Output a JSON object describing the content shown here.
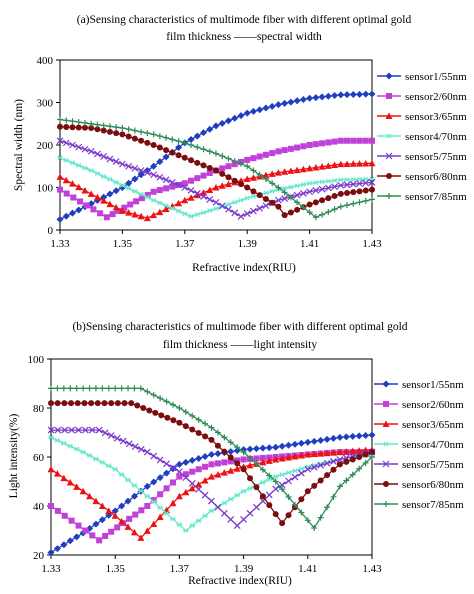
{
  "chart_data": [
    {
      "type": "line",
      "title_lines": [
        "(a)Sensing characteristics of multimode fiber with different optimal gold",
        "film thickness ——spectral width"
      ],
      "xlabel": "Refractive index(RIU)",
      "ylabel": "Spectral width (nm)",
      "xlim": [
        1.33,
        1.43
      ],
      "ylim": [
        0,
        400
      ],
      "xticks": [
        "1.33",
        "1.35",
        "1.37",
        "1.39",
        "1.41",
        "1.43"
      ],
      "yticks": [
        "0",
        "100",
        "200",
        "300",
        "400"
      ],
      "grid": false,
      "legend_position": "right",
      "series": [
        {
          "name": "sensor1/55nm",
          "color": "#1f3fbf",
          "marker": "diamond",
          "points": [
            [
              1.33,
              25
            ],
            [
              1.34,
              62
            ],
            [
              1.35,
              100
            ],
            [
              1.36,
              150
            ],
            [
              1.37,
              205
            ],
            [
              1.38,
              245
            ],
            [
              1.39,
              275
            ],
            [
              1.4,
              295
            ],
            [
              1.41,
              310
            ],
            [
              1.42,
              318
            ],
            [
              1.43,
              320
            ]
          ]
        },
        {
          "name": "sensor2/60nm",
          "color": "#c040d8",
          "marker": "square",
          "points": [
            [
              1.33,
              95
            ],
            [
              1.345,
              30
            ],
            [
              1.36,
              90
            ],
            [
              1.37,
              110
            ],
            [
              1.38,
              140
            ],
            [
              1.39,
              165
            ],
            [
              1.4,
              185
            ],
            [
              1.41,
              200
            ],
            [
              1.42,
              210
            ],
            [
              1.43,
              210
            ]
          ]
        },
        {
          "name": "sensor3/65nm",
          "color": "#ee1111",
          "marker": "triangle",
          "points": [
            [
              1.33,
              125
            ],
            [
              1.34,
              85
            ],
            [
              1.35,
              45
            ],
            [
              1.358,
              28
            ],
            [
              1.37,
              70
            ],
            [
              1.38,
              100
            ],
            [
              1.39,
              120
            ],
            [
              1.4,
              135
            ],
            [
              1.41,
              145
            ],
            [
              1.42,
              155
            ],
            [
              1.43,
              157
            ]
          ]
        },
        {
          "name": "sensor4/70nm",
          "color": "#66e8cc",
          "marker": "asterisk",
          "points": [
            [
              1.33,
              170
            ],
            [
              1.34,
              140
            ],
            [
              1.35,
              105
            ],
            [
              1.36,
              70
            ],
            [
              1.372,
              32
            ],
            [
              1.38,
              50
            ],
            [
              1.39,
              75
            ],
            [
              1.4,
              95
            ],
            [
              1.41,
              110
            ],
            [
              1.42,
              118
            ],
            [
              1.43,
              120
            ]
          ]
        },
        {
          "name": "sensor5/75nm",
          "color": "#7a3acc",
          "marker": "x",
          "points": [
            [
              1.33,
              210
            ],
            [
              1.34,
              185
            ],
            [
              1.35,
              155
            ],
            [
              1.36,
              130
            ],
            [
              1.37,
              100
            ],
            [
              1.38,
              65
            ],
            [
              1.388,
              32
            ],
            [
              1.4,
              70
            ],
            [
              1.41,
              90
            ],
            [
              1.42,
              105
            ],
            [
              1.43,
              112
            ]
          ]
        },
        {
          "name": "sensor6/80nm",
          "color": "#7a0e0e",
          "marker": "circle",
          "points": [
            [
              1.33,
              243
            ],
            [
              1.34,
              240
            ],
            [
              1.35,
              225
            ],
            [
              1.36,
              200
            ],
            [
              1.37,
              170
            ],
            [
              1.38,
              140
            ],
            [
              1.39,
              100
            ],
            [
              1.4,
              55
            ],
            [
              1.402,
              35
            ],
            [
              1.41,
              60
            ],
            [
              1.42,
              85
            ],
            [
              1.43,
              95
            ]
          ]
        },
        {
          "name": "sensor7/85nm",
          "color": "#2e8b57",
          "marker": "plus",
          "points": [
            [
              1.33,
              260
            ],
            [
              1.34,
              250
            ],
            [
              1.35,
              240
            ],
            [
              1.36,
              225
            ],
            [
              1.37,
              205
            ],
            [
              1.38,
              180
            ],
            [
              1.39,
              150
            ],
            [
              1.4,
              100
            ],
            [
              1.412,
              30
            ],
            [
              1.42,
              55
            ],
            [
              1.43,
              72
            ]
          ]
        }
      ]
    },
    {
      "type": "line",
      "title_lines": [
        "(b)Sensing characteristics of multimode fiber with different optimal gold",
        "film thickness ——light intensity"
      ],
      "xlabel": "Refractive index(RIU)",
      "ylabel": "Light intensity(%)",
      "xlim": [
        1.33,
        1.43
      ],
      "ylim": [
        20,
        100
      ],
      "xticks": [
        "1.33",
        "1.35",
        "1.37",
        "1.39",
        "1.41",
        "1.43"
      ],
      "yticks": [
        "20",
        "40",
        "60",
        "80",
        "100"
      ],
      "grid": false,
      "legend_position": "right",
      "series": [
        {
          "name": "sensor1/55nm",
          "color": "#1f3fbf",
          "marker": "diamond",
          "points": [
            [
              1.33,
              21
            ],
            [
              1.34,
              29
            ],
            [
              1.35,
              38
            ],
            [
              1.36,
              48
            ],
            [
              1.37,
              57
            ],
            [
              1.38,
              61
            ],
            [
              1.39,
              63
            ],
            [
              1.4,
              64
            ],
            [
              1.41,
              66
            ],
            [
              1.42,
              68
            ],
            [
              1.43,
              69
            ]
          ]
        },
        {
          "name": "sensor2/60nm",
          "color": "#c040d8",
          "marker": "square",
          "points": [
            [
              1.33,
              40
            ],
            [
              1.345,
              26
            ],
            [
              1.36,
              40
            ],
            [
              1.37,
              52
            ],
            [
              1.38,
              57
            ],
            [
              1.39,
              59
            ],
            [
              1.4,
              60
            ],
            [
              1.41,
              61
            ],
            [
              1.42,
              62
            ],
            [
              1.43,
              62
            ]
          ]
        },
        {
          "name": "sensor3/65nm",
          "color": "#ee1111",
          "marker": "triangle",
          "points": [
            [
              1.33,
              55
            ],
            [
              1.34,
              46
            ],
            [
              1.35,
              36
            ],
            [
              1.358,
              27
            ],
            [
              1.37,
              44
            ],
            [
              1.38,
              52
            ],
            [
              1.39,
              56
            ],
            [
              1.4,
              59
            ],
            [
              1.41,
              61
            ],
            [
              1.42,
              62
            ],
            [
              1.43,
              63
            ]
          ]
        },
        {
          "name": "sensor4/70nm",
          "color": "#66e8cc",
          "marker": "asterisk",
          "points": [
            [
              1.33,
              68
            ],
            [
              1.34,
              62
            ],
            [
              1.35,
              55
            ],
            [
              1.36,
              44
            ],
            [
              1.372,
              30
            ],
            [
              1.38,
              38
            ],
            [
              1.39,
              46
            ],
            [
              1.4,
              52
            ],
            [
              1.41,
              56
            ],
            [
              1.42,
              59
            ],
            [
              1.43,
              61
            ]
          ]
        },
        {
          "name": "sensor5/75nm",
          "color": "#7a3acc",
          "marker": "x",
          "points": [
            [
              1.33,
              71
            ],
            [
              1.345,
              71
            ],
            [
              1.36,
              62
            ],
            [
              1.37,
              54
            ],
            [
              1.38,
              42
            ],
            [
              1.388,
              32
            ],
            [
              1.4,
              47
            ],
            [
              1.41,
              55
            ],
            [
              1.42,
              59
            ],
            [
              1.43,
              62
            ]
          ]
        },
        {
          "name": "sensor6/80nm",
          "color": "#7a0e0e",
          "marker": "circle",
          "points": [
            [
              1.33,
              82
            ],
            [
              1.355,
              82
            ],
            [
              1.37,
              74
            ],
            [
              1.38,
              67
            ],
            [
              1.39,
              55
            ],
            [
              1.402,
              33
            ],
            [
              1.41,
              46
            ],
            [
              1.42,
              57
            ],
            [
              1.43,
              62
            ]
          ]
        },
        {
          "name": "sensor7/85nm",
          "color": "#2e8b57",
          "marker": "plus",
          "points": [
            [
              1.33,
              88
            ],
            [
              1.358,
              88
            ],
            [
              1.37,
              80
            ],
            [
              1.38,
              72
            ],
            [
              1.39,
              62
            ],
            [
              1.4,
              50
            ],
            [
              1.412,
              31
            ],
            [
              1.42,
              48
            ],
            [
              1.43,
              60
            ]
          ]
        }
      ]
    }
  ]
}
